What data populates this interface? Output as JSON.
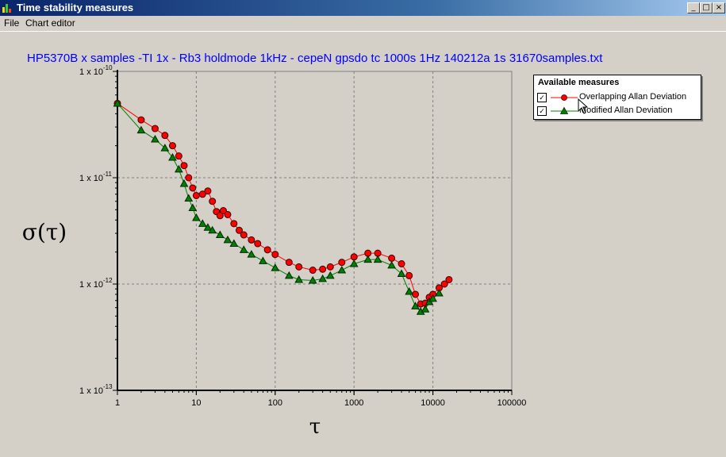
{
  "window": {
    "title": "Time stability measures",
    "buttons": [
      "_",
      "□",
      "×"
    ]
  },
  "menu": {
    "items": [
      "File",
      "Chart editor"
    ]
  },
  "legend": {
    "title": "Available measures",
    "items": [
      {
        "label": "Overlapping Allan Deviation",
        "checked": true,
        "color": "#ff0000",
        "marker": "circle"
      },
      {
        "label": "Modified Allan Deviation",
        "checked": true,
        "color": "#008000",
        "marker": "triangle"
      }
    ]
  },
  "chart_data": {
    "type": "scatter",
    "title": "HP5370B  x samples -TI 1x - Rb3 holdmode 1kHz - cepeN gpsdo tc 1000s 1Hz 140212a 1s 31670samples.txt",
    "xlabel": "τ",
    "ylabel": "σ(τ)",
    "xscale": "log",
    "yscale": "log",
    "xlim": [
      1,
      100000
    ],
    "ylim": [
      1e-13,
      1e-10
    ],
    "grid": true,
    "legend_position": "top-right",
    "x_ticks": [
      "1",
      "10",
      "100",
      "1000",
      "10000",
      "100000"
    ],
    "y_ticks": [
      {
        "base": "1 x 10",
        "exp": "-13"
      },
      {
        "base": "1 x 10",
        "exp": "-12"
      },
      {
        "base": "1 x 10",
        "exp": "-11"
      },
      {
        "base": "1 x 10",
        "exp": "-10"
      }
    ],
    "series": [
      {
        "name": "Overlapping Allan Deviation",
        "color": "#ff0000",
        "marker": "circle",
        "points": [
          [
            1,
            5e-11
          ],
          [
            2,
            3.5e-11
          ],
          [
            3,
            2.9e-11
          ],
          [
            4,
            2.5e-11
          ],
          [
            5,
            2e-11
          ],
          [
            6,
            1.6e-11
          ],
          [
            7,
            1.3e-11
          ],
          [
            8,
            1e-11
          ],
          [
            9,
            8e-12
          ],
          [
            10,
            6.8e-12
          ],
          [
            12,
            7e-12
          ],
          [
            14,
            7.5e-12
          ],
          [
            16,
            6e-12
          ],
          [
            18,
            4.8e-12
          ],
          [
            20,
            4.4e-12
          ],
          [
            22,
            4.9e-12
          ],
          [
            25,
            4.5e-12
          ],
          [
            30,
            3.7e-12
          ],
          [
            35,
            3.2e-12
          ],
          [
            40,
            2.9e-12
          ],
          [
            50,
            2.6e-12
          ],
          [
            60,
            2.4e-12
          ],
          [
            80,
            2.1e-12
          ],
          [
            100,
            1.9e-12
          ],
          [
            150,
            1.6e-12
          ],
          [
            200,
            1.45e-12
          ],
          [
            300,
            1.35e-12
          ],
          [
            400,
            1.38e-12
          ],
          [
            500,
            1.45e-12
          ],
          [
            700,
            1.6e-12
          ],
          [
            1000,
            1.8e-12
          ],
          [
            1500,
            1.95e-12
          ],
          [
            2000,
            1.95e-12
          ],
          [
            3000,
            1.75e-12
          ],
          [
            4000,
            1.55e-12
          ],
          [
            5000,
            1.2e-12
          ],
          [
            6000,
            8e-13
          ],
          [
            7000,
            6.5e-13
          ],
          [
            8000,
            6.6e-13
          ],
          [
            9000,
            7.5e-13
          ],
          [
            10000,
            8e-13
          ],
          [
            12000,
            9.2e-13
          ],
          [
            14000,
            1e-12
          ],
          [
            16000,
            1.1e-12
          ]
        ]
      },
      {
        "name": "Modified Allan Deviation",
        "color": "#008000",
        "marker": "triangle",
        "points": [
          [
            1,
            5e-11
          ],
          [
            2,
            2.8e-11
          ],
          [
            3,
            2.3e-11
          ],
          [
            4,
            1.9e-11
          ],
          [
            5,
            1.55e-11
          ],
          [
            6,
            1.2e-11
          ],
          [
            7,
            8.8e-12
          ],
          [
            8,
            6.4e-12
          ],
          [
            9,
            5.2e-12
          ],
          [
            10,
            4.2e-12
          ],
          [
            12,
            3.7e-12
          ],
          [
            14,
            3.4e-12
          ],
          [
            16,
            3.2e-12
          ],
          [
            20,
            2.9e-12
          ],
          [
            25,
            2.6e-12
          ],
          [
            30,
            2.4e-12
          ],
          [
            40,
            2.1e-12
          ],
          [
            50,
            1.9e-12
          ],
          [
            70,
            1.65e-12
          ],
          [
            100,
            1.42e-12
          ],
          [
            150,
            1.2e-12
          ],
          [
            200,
            1.1e-12
          ],
          [
            300,
            1.08e-12
          ],
          [
            400,
            1.12e-12
          ],
          [
            500,
            1.2e-12
          ],
          [
            700,
            1.35e-12
          ],
          [
            1000,
            1.55e-12
          ],
          [
            1500,
            1.7e-12
          ],
          [
            2000,
            1.7e-12
          ],
          [
            3000,
            1.5e-12
          ],
          [
            4000,
            1.25e-12
          ],
          [
            5000,
            8.5e-13
          ],
          [
            6000,
            6.2e-13
          ],
          [
            7000,
            5.5e-13
          ],
          [
            8000,
            5.8e-13
          ],
          [
            9000,
            6.8e-13
          ],
          [
            10000,
            7.3e-13
          ],
          [
            12000,
            8.2e-13
          ]
        ]
      }
    ]
  }
}
